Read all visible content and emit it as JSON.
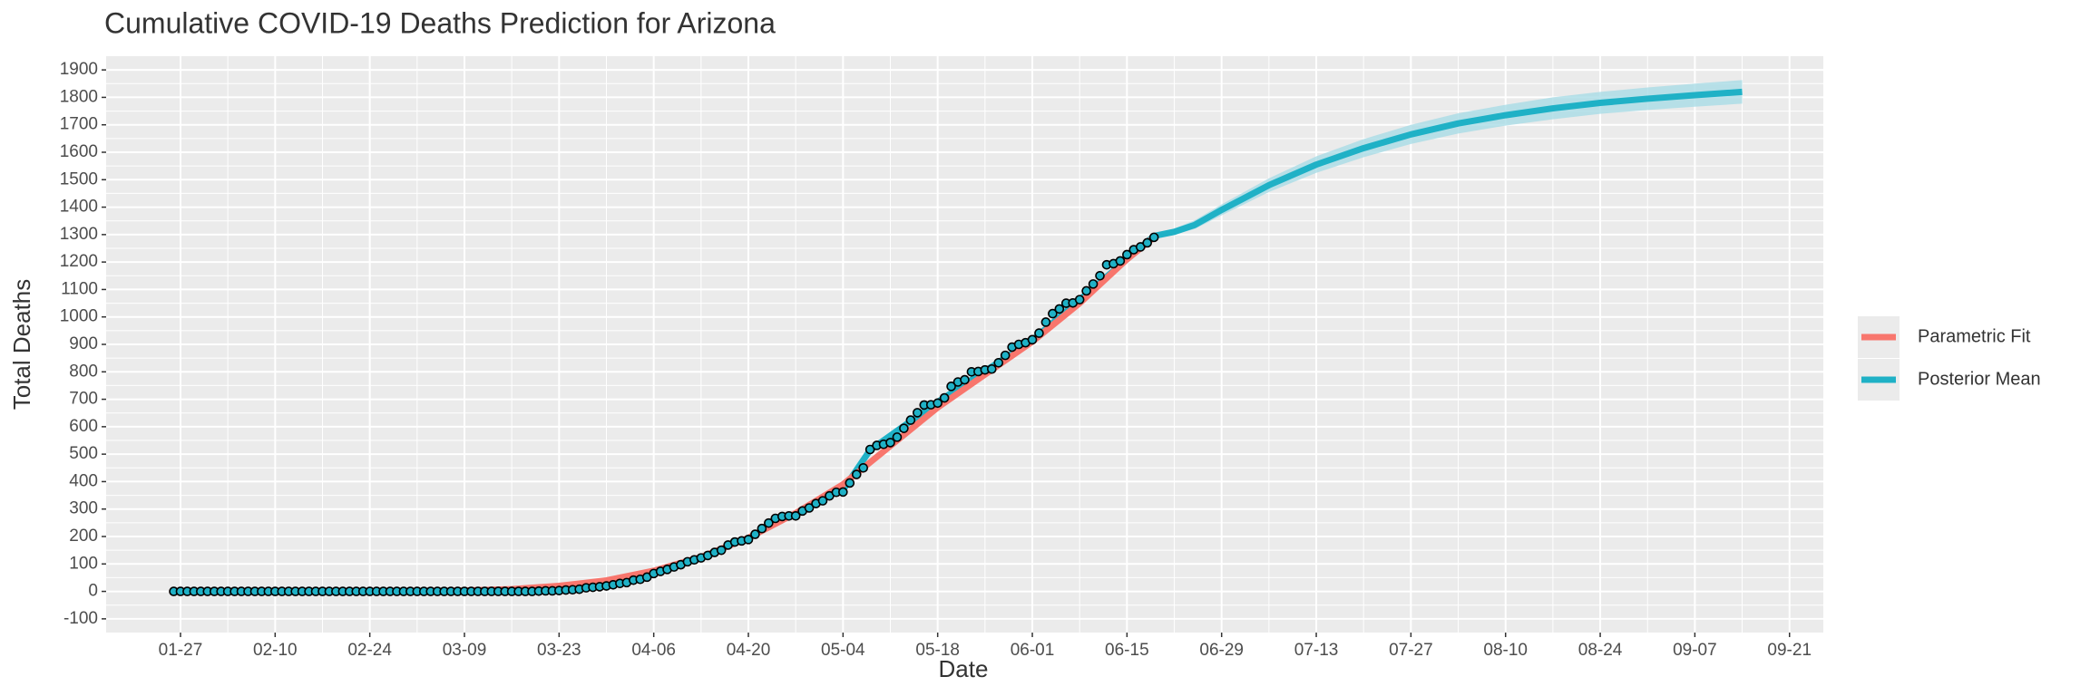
{
  "chart_data": {
    "type": "line",
    "title": "Cumulative COVID-19 Deaths Prediction for Arizona",
    "x_label": "Date",
    "y_label": "Total Deaths",
    "xlim": [
      "01-16",
      "09-26"
    ],
    "ylim": [
      -150,
      1950
    ],
    "xticks": [
      "01-27",
      "02-10",
      "02-24",
      "03-09",
      "03-23",
      "04-06",
      "04-20",
      "05-04",
      "05-18",
      "06-01",
      "06-15",
      "06-29",
      "07-13",
      "07-27",
      "08-10",
      "08-24",
      "09-07",
      "09-21"
    ],
    "yticks": [
      -100,
      0,
      100,
      200,
      300,
      400,
      500,
      600,
      700,
      800,
      900,
      1000,
      1100,
      1200,
      1300,
      1400,
      1500,
      1600,
      1700,
      1800,
      1900
    ],
    "grid": true,
    "legend_position": "right",
    "series": [
      {
        "name": "Posterior Mean",
        "color": "#1FB1C6",
        "band_color": "#A9DCE6",
        "x": [
          "05-04",
          "05-08",
          "05-18",
          "06-01",
          "06-15",
          "06-19",
          "06-22",
          "06-25",
          "06-29",
          "07-06",
          "07-13",
          "07-20",
          "07-27",
          "08-03",
          "08-10",
          "08-17",
          "08-24",
          "08-31",
          "09-07",
          "09-14"
        ],
        "values": [
          370,
          515,
          690,
          915,
          1210,
          1295,
          1310,
          1335,
          1390,
          1480,
          1555,
          1615,
          1665,
          1705,
          1735,
          1760,
          1780,
          1795,
          1808,
          1820
        ],
        "lower": [
          null,
          null,
          null,
          null,
          null,
          1288,
          1300,
          1320,
          1370,
          1455,
          1525,
          1582,
          1630,
          1668,
          1697,
          1720,
          1740,
          1754,
          1766,
          1777
        ],
        "upper": [
          null,
          null,
          null,
          null,
          null,
          1302,
          1322,
          1352,
          1410,
          1505,
          1585,
          1648,
          1700,
          1742,
          1773,
          1800,
          1820,
          1836,
          1850,
          1863
        ]
      },
      {
        "name": "Parametric Fit",
        "color": "#F8766D",
        "x": [
          "03-01",
          "03-09",
          "03-16",
          "03-23",
          "03-30",
          "04-06",
          "04-13",
          "04-20",
          "04-27",
          "05-04",
          "05-11",
          "05-18",
          "05-25",
          "06-01",
          "06-08",
          "06-15",
          "06-19"
        ],
        "values": [
          0,
          3,
          8,
          20,
          40,
          75,
          125,
          195,
          285,
          390,
          530,
          670,
          790,
          910,
          1050,
          1210,
          1290
        ]
      }
    ],
    "points": {
      "color": "#1FB1C6",
      "x": [
        "01-26",
        "01-27",
        "01-28",
        "01-29",
        "01-30",
        "01-31",
        "02-01",
        "02-02",
        "02-03",
        "02-04",
        "02-05",
        "02-06",
        "02-07",
        "02-08",
        "02-09",
        "02-10",
        "02-11",
        "02-12",
        "02-13",
        "02-14",
        "02-15",
        "02-16",
        "02-17",
        "02-18",
        "02-19",
        "02-20",
        "02-21",
        "02-22",
        "02-23",
        "02-24",
        "02-25",
        "02-26",
        "02-27",
        "02-28",
        "02-29",
        "03-01",
        "03-02",
        "03-03",
        "03-04",
        "03-05",
        "03-06",
        "03-07",
        "03-08",
        "03-09",
        "03-10",
        "03-11",
        "03-12",
        "03-13",
        "03-14",
        "03-15",
        "03-16",
        "03-17",
        "03-18",
        "03-19",
        "03-20",
        "03-21",
        "03-22",
        "03-23",
        "03-24",
        "03-25",
        "03-26",
        "03-27",
        "03-28",
        "03-29",
        "03-30",
        "03-31",
        "04-01",
        "04-02",
        "04-03",
        "04-04",
        "04-05",
        "04-06",
        "04-07",
        "04-08",
        "04-09",
        "04-10",
        "04-11",
        "04-12",
        "04-13",
        "04-14",
        "04-15",
        "04-16",
        "04-17",
        "04-18",
        "04-19",
        "04-20",
        "04-21",
        "04-22",
        "04-23",
        "04-24",
        "04-25",
        "04-26",
        "04-27",
        "04-28",
        "04-29",
        "04-30",
        "05-01",
        "05-02",
        "05-03",
        "05-04",
        "05-05",
        "05-06",
        "05-07",
        "05-08",
        "05-09",
        "05-10",
        "05-11",
        "05-12",
        "05-13",
        "05-14",
        "05-15",
        "05-16",
        "05-17",
        "05-18",
        "05-19",
        "05-20",
        "05-21",
        "05-22",
        "05-23",
        "05-24",
        "05-25",
        "05-26",
        "05-27",
        "05-28",
        "05-29",
        "05-30",
        "05-31",
        "06-01",
        "06-02",
        "06-03",
        "06-04",
        "06-05",
        "06-06",
        "06-07",
        "06-08",
        "06-09",
        "06-10",
        "06-11",
        "06-12",
        "06-13",
        "06-14",
        "06-15",
        "06-16",
        "06-17",
        "06-18",
        "06-19"
      ],
      "values": [
        0,
        0,
        0,
        0,
        0,
        0,
        0,
        0,
        0,
        0,
        0,
        0,
        0,
        0,
        0,
        0,
        0,
        0,
        0,
        0,
        0,
        0,
        0,
        0,
        0,
        0,
        0,
        0,
        0,
        0,
        0,
        0,
        0,
        0,
        0,
        0,
        0,
        0,
        0,
        0,
        0,
        0,
        0,
        0,
        0,
        0,
        0,
        0,
        0,
        0,
        0,
        0,
        0,
        0,
        1,
        2,
        2,
        3,
        5,
        6,
        8,
        13,
        15,
        17,
        20,
        24,
        29,
        32,
        41,
        44,
        52,
        65,
        73,
        80,
        89,
        97,
        108,
        115,
        122,
        131,
        142,
        150,
        169,
        180,
        184,
        189,
        208,
        229,
        249,
        266,
        273,
        275,
        275,
        293,
        304,
        320,
        330,
        348,
        361,
        362,
        395,
        426,
        450,
        517,
        532,
        536,
        542,
        562,
        594,
        624,
        651,
        679,
        680,
        686,
        705,
        747,
        763,
        771,
        800,
        801,
        807,
        810,
        833,
        860,
        890,
        900,
        906,
        917,
        941,
        981,
        1012,
        1029,
        1050,
        1051,
        1063,
        1095,
        1120,
        1150,
        1190,
        1194,
        1204,
        1227,
        1245,
        1255,
        1270,
        1290
      ]
    }
  }
}
